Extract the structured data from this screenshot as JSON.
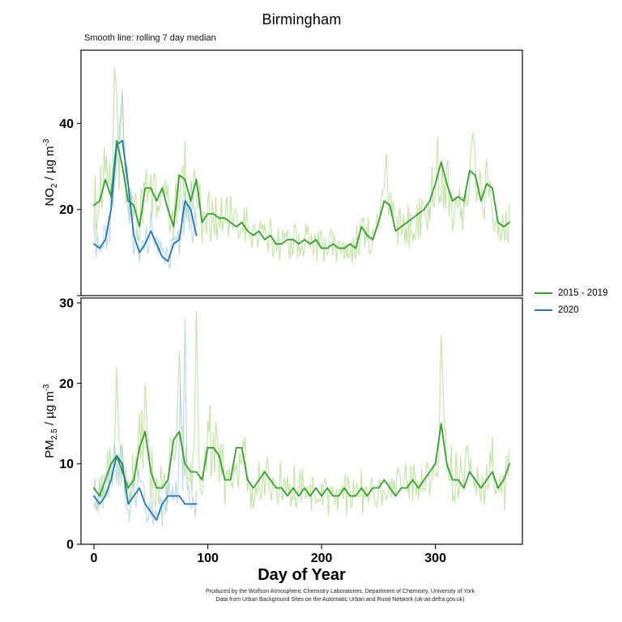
{
  "title": "Birmingham",
  "subtitle": "Smooth line: rolling 7 day median",
  "xlabel": "Day of Year",
  "legend": {
    "items": [
      {
        "label": "2015 - 2019",
        "color": "#33a02c"
      },
      {
        "label": "2020",
        "color": "#1f78b4"
      }
    ]
  },
  "footer": {
    "line1": "Produced by the Wolfson Atmospheric Chemistry Laboratories, Department of Chemistry, University of York",
    "line2": "Data from Urban Background Sites on the Automatic Urban and Rural Network (uk-air.defra.gov.uk)"
  },
  "chart_data": {
    "type": "line",
    "title": "Birmingham",
    "subtitle": "Smooth line: rolling 7 day median",
    "xlabel": "Day of Year",
    "grid": false,
    "legend_position": "right",
    "x": {
      "lim": [
        0,
        365
      ],
      "ticks": [
        {
          "v": 0,
          "label": "0"
        },
        {
          "v": 100,
          "label": "100"
        },
        {
          "v": 200,
          "label": "200"
        },
        {
          "v": 300,
          "label": "300"
        }
      ]
    },
    "panels": [
      {
        "id": "no2",
        "ylabel": "NO2 / ug m-3",
        "ylabel_parts": [
          {
            "text": "NO"
          },
          {
            "text": "2",
            "style": "sub"
          },
          {
            "text": " / µg m"
          },
          {
            "text": "-3",
            "style": "sup"
          }
        ],
        "ylim": [
          0,
          57
        ],
        "yticks": [
          {
            "v": 0,
            "label": ""
          },
          {
            "v": 20,
            "label": "20"
          },
          {
            "v": 40,
            "label": "40"
          }
        ],
        "series": [
          {
            "name": "2015 - 2019",
            "color": "#33a02c",
            "raw_color": "#b2df8a",
            "raw_amplitude": 0.32,
            "days": [
              0,
              5,
              10,
              15,
              20,
              25,
              30,
              35,
              40,
              45,
              50,
              55,
              60,
              65,
              70,
              75,
              80,
              85,
              90,
              95,
              100,
              105,
              110,
              115,
              120,
              125,
              130,
              135,
              140,
              145,
              150,
              155,
              160,
              165,
              170,
              175,
              180,
              185,
              190,
              195,
              200,
              205,
              210,
              215,
              220,
              225,
              230,
              235,
              240,
              245,
              250,
              255,
              260,
              265,
              270,
              275,
              280,
              285,
              290,
              295,
              300,
              305,
              310,
              315,
              320,
              325,
              330,
              335,
              340,
              345,
              350,
              355,
              360,
              365
            ],
            "values": [
              21,
              22,
              27,
              23,
              36,
              30,
              22,
              21,
              16,
              25,
              25,
              22,
              25,
              20,
              16,
              28,
              27,
              22,
              27,
              17,
              19,
              19,
              18,
              18,
              17,
              16,
              17,
              15,
              14,
              15,
              13,
              14,
              12,
              12,
              13,
              13,
              12,
              13,
              12,
              13,
              11,
              11,
              12,
              11,
              11,
              12,
              11,
              16,
              14,
              13,
              17,
              22,
              21,
              15,
              16,
              17,
              18,
              19,
              20,
              22,
              26,
              31,
              26,
              22,
              23,
              22,
              29,
              28,
              22,
              26,
              25,
              17,
              16,
              17
            ],
            "raw_spikes": [
              {
                "x": 18,
                "y": 53
              },
              {
                "x": 25,
                "y": 48
              },
              {
                "x": 257,
                "y": 33
              },
              {
                "x": 333,
                "y": 38
              }
            ]
          },
          {
            "name": "2020",
            "color": "#1f78b4",
            "raw_color": "#a6cee3",
            "raw_amplitude": 0.35,
            "days": [
              0,
              5,
              10,
              15,
              20,
              25,
              30,
              35,
              40,
              45,
              50,
              55,
              60,
              65,
              70,
              75,
              80,
              85,
              90
            ],
            "values": [
              12,
              11,
              13,
              20,
              35,
              36,
              26,
              14,
              10,
              12,
              15,
              12,
              9,
              8,
              12,
              13,
              22,
              20,
              14
            ],
            "raw_spikes": [
              {
                "x": 23,
                "y": 41
              }
            ]
          }
        ]
      },
      {
        "id": "pm25",
        "ylabel": "PM2.5 / ug m-3",
        "ylabel_parts": [
          {
            "text": "PM"
          },
          {
            "text": "2.5",
            "style": "sub"
          },
          {
            "text": " / µg m"
          },
          {
            "text": "-3",
            "style": "sup"
          }
        ],
        "ylim": [
          0,
          30.6
        ],
        "yticks": [
          {
            "v": 0,
            "label": "0"
          },
          {
            "v": 10,
            "label": "10"
          },
          {
            "v": 20,
            "label": "20"
          },
          {
            "v": 30,
            "label": "30"
          }
        ],
        "series": [
          {
            "name": "2015 - 2019",
            "color": "#33a02c",
            "raw_color": "#b2df8a",
            "raw_amplitude": 0.38,
            "days": [
              0,
              5,
              10,
              15,
              20,
              25,
              30,
              35,
              40,
              45,
              50,
              55,
              60,
              65,
              70,
              75,
              80,
              85,
              90,
              95,
              100,
              105,
              110,
              115,
              120,
              125,
              130,
              135,
              140,
              145,
              150,
              155,
              160,
              165,
              170,
              175,
              180,
              185,
              190,
              195,
              200,
              205,
              210,
              215,
              220,
              225,
              230,
              235,
              240,
              245,
              250,
              255,
              260,
              265,
              270,
              275,
              280,
              285,
              290,
              295,
              300,
              305,
              310,
              315,
              320,
              325,
              330,
              335,
              340,
              345,
              350,
              355,
              360,
              365
            ],
            "values": [
              7,
              6,
              8,
              10,
              11,
              9,
              7,
              8,
              12,
              14,
              9,
              7,
              7,
              8,
              13,
              14,
              10,
              9,
              9,
              8,
              12,
              12,
              11,
              8,
              8,
              12,
              12,
              8,
              7,
              8,
              9,
              8,
              7,
              7,
              6,
              7,
              6,
              7,
              6,
              7,
              6,
              7,
              6,
              6,
              7,
              6,
              6,
              7,
              6,
              7,
              7,
              8,
              7,
              6,
              7,
              7,
              8,
              7,
              8,
              9,
              10,
              15,
              10,
              8,
              8,
              7,
              9,
              8,
              7,
              8,
              9,
              7,
              8,
              10
            ],
            "raw_spikes": [
              {
                "x": 20,
                "y": 22
              },
              {
                "x": 45,
                "y": 20
              },
              {
                "x": 75,
                "y": 24
              },
              {
                "x": 90,
                "y": 29
              },
              {
                "x": 305,
                "y": 26
              }
            ]
          },
          {
            "name": "2020",
            "color": "#1f78b4",
            "raw_color": "#a6cee3",
            "raw_amplitude": 0.38,
            "days": [
              0,
              5,
              10,
              15,
              20,
              25,
              30,
              35,
              40,
              45,
              50,
              55,
              60,
              65,
              70,
              75,
              80,
              85,
              90
            ],
            "values": [
              6,
              5,
              6,
              8,
              11,
              10,
              5,
              6,
              7,
              5,
              4,
              3,
              5,
              6,
              6,
              6,
              5,
              5,
              5
            ],
            "raw_spikes": [
              {
                "x": 80,
                "y": 28
              },
              {
                "x": 76,
                "y": 20
              }
            ]
          }
        ]
      }
    ]
  }
}
